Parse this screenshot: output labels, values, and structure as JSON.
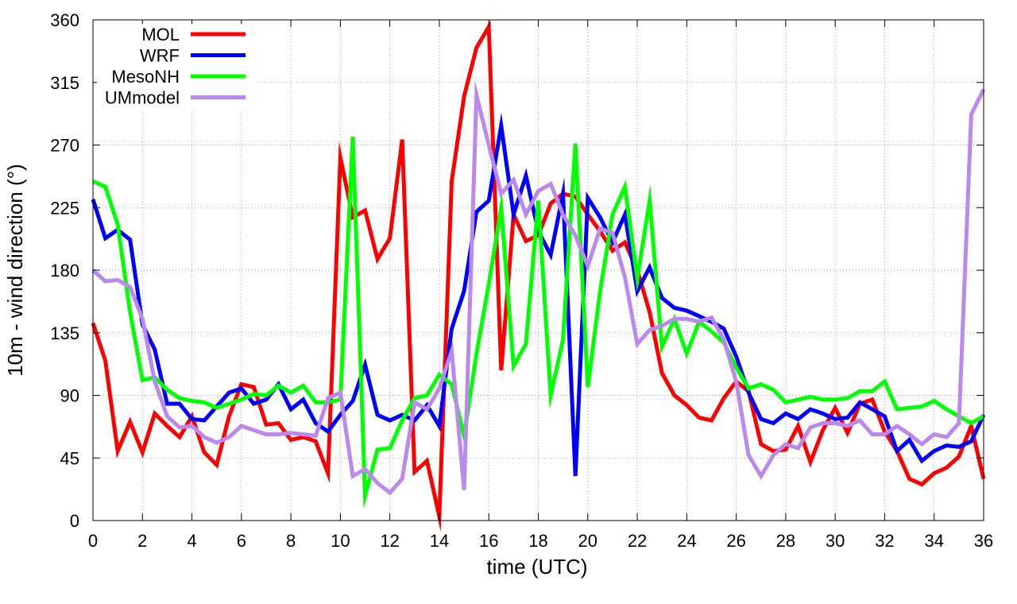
{
  "chart_data": {
    "type": "line",
    "title": "",
    "xlabel": "time (UTC)",
    "ylabel": "10m - wind direction (°)",
    "xlim": [
      0,
      36
    ],
    "ylim": [
      0,
      360
    ],
    "xticks": [
      0,
      2,
      4,
      6,
      8,
      10,
      12,
      14,
      16,
      18,
      20,
      22,
      24,
      26,
      28,
      30,
      32,
      34,
      36
    ],
    "yticks": [
      0,
      45,
      90,
      135,
      180,
      225,
      270,
      315,
      360
    ],
    "grid": true,
    "legend_position": "top-left",
    "series": [
      {
        "name": "MOL",
        "color": "#ff0000",
        "points": [
          [
            0,
            142
          ],
          [
            0.5,
            115
          ],
          [
            1,
            50
          ],
          [
            1.5,
            71
          ],
          [
            2,
            49
          ],
          [
            2.5,
            77
          ],
          [
            3,
            68
          ],
          [
            3.5,
            60
          ],
          [
            4,
            75
          ],
          [
            4.5,
            49
          ],
          [
            5,
            40
          ],
          [
            5.5,
            75
          ],
          [
            6,
            98
          ],
          [
            6.5,
            96
          ],
          [
            7,
            69
          ],
          [
            7.5,
            70
          ],
          [
            8,
            58
          ],
          [
            8.5,
            60
          ],
          [
            9,
            57
          ],
          [
            9.5,
            34
          ],
          [
            10,
            261
          ],
          [
            10.5,
            218
          ],
          [
            11,
            223
          ],
          [
            11.5,
            188
          ],
          [
            12,
            203
          ],
          [
            12.5,
            274
          ],
          [
            13,
            35
          ],
          [
            13.5,
            43
          ],
          [
            14,
            3
          ],
          [
            14.5,
            244
          ],
          [
            15,
            305
          ],
          [
            15.5,
            340
          ],
          [
            16,
            355
          ],
          [
            16.5,
            108
          ],
          [
            17,
            220
          ],
          [
            17.5,
            201
          ],
          [
            18,
            205
          ],
          [
            18.5,
            228
          ],
          [
            19,
            235
          ],
          [
            19.5,
            233
          ],
          [
            20,
            220
          ],
          [
            20.5,
            208
          ],
          [
            21,
            194
          ],
          [
            21.5,
            200
          ],
          [
            22,
            180
          ],
          [
            22.5,
            150
          ],
          [
            23,
            106
          ],
          [
            23.5,
            90
          ],
          [
            24,
            83
          ],
          [
            24.5,
            74
          ],
          [
            25,
            72
          ],
          [
            25.5,
            88
          ],
          [
            26,
            100
          ],
          [
            26.5,
            93
          ],
          [
            27,
            55
          ],
          [
            27.5,
            50
          ],
          [
            28,
            51
          ],
          [
            28.5,
            68
          ],
          [
            29,
            42
          ],
          [
            29.5,
            65
          ],
          [
            30,
            81
          ],
          [
            30.5,
            63
          ],
          [
            31,
            84
          ],
          [
            31.5,
            87
          ],
          [
            32,
            64
          ],
          [
            32.5,
            50
          ],
          [
            33,
            30
          ],
          [
            33.5,
            26
          ],
          [
            34,
            34
          ],
          [
            34.5,
            38
          ],
          [
            35,
            46
          ],
          [
            35.5,
            68
          ],
          [
            36,
            30
          ]
        ]
      },
      {
        "name": "WRF",
        "color": "#0000ff",
        "points": [
          [
            0,
            231
          ],
          [
            0.5,
            203
          ],
          [
            1,
            209
          ],
          [
            1.5,
            202
          ],
          [
            2,
            141
          ],
          [
            2.5,
            123
          ],
          [
            3,
            84
          ],
          [
            3.5,
            84
          ],
          [
            4,
            73
          ],
          [
            4.5,
            72
          ],
          [
            5,
            82
          ],
          [
            5.5,
            92
          ],
          [
            6,
            95
          ],
          [
            6.5,
            84
          ],
          [
            7,
            87
          ],
          [
            7.5,
            98
          ],
          [
            8,
            80
          ],
          [
            8.5,
            87
          ],
          [
            9,
            70
          ],
          [
            9.5,
            64
          ],
          [
            10,
            76
          ],
          [
            10.5,
            86
          ],
          [
            11,
            112
          ],
          [
            11.5,
            76
          ],
          [
            12,
            72
          ],
          [
            12.5,
            76
          ],
          [
            13,
            72
          ],
          [
            13.5,
            83
          ],
          [
            14,
            68
          ],
          [
            14.5,
            138
          ],
          [
            15,
            165
          ],
          [
            15.5,
            222
          ],
          [
            16,
            230
          ],
          [
            16.5,
            284
          ],
          [
            17,
            220
          ],
          [
            17.5,
            248
          ],
          [
            18,
            208
          ],
          [
            18.5,
            191
          ],
          [
            19,
            235
          ],
          [
            19.5,
            32
          ],
          [
            20,
            232
          ],
          [
            20.5,
            218
          ],
          [
            21,
            200
          ],
          [
            21.5,
            220
          ],
          [
            22,
            165
          ],
          [
            22.5,
            182
          ],
          [
            23,
            160
          ],
          [
            23.5,
            153
          ],
          [
            24,
            151
          ],
          [
            24.5,
            147
          ],
          [
            25,
            143
          ],
          [
            25.5,
            138
          ],
          [
            26,
            118
          ],
          [
            26.5,
            92
          ],
          [
            27,
            73
          ],
          [
            27.5,
            70
          ],
          [
            28,
            77
          ],
          [
            28.5,
            73
          ],
          [
            29,
            80
          ],
          [
            29.5,
            77
          ],
          [
            30,
            73
          ],
          [
            30.5,
            74
          ],
          [
            31,
            85
          ],
          [
            31.5,
            80
          ],
          [
            32,
            75
          ],
          [
            32.5,
            50
          ],
          [
            33,
            58
          ],
          [
            33.5,
            43
          ],
          [
            34,
            50
          ],
          [
            34.5,
            54
          ],
          [
            35,
            53
          ],
          [
            35.5,
            57
          ],
          [
            36,
            76
          ]
        ]
      },
      {
        "name": "MesoNH",
        "color": "#00ff00",
        "points": [
          [
            0,
            244
          ],
          [
            0.5,
            240
          ],
          [
            1,
            213
          ],
          [
            1.5,
            150
          ],
          [
            2,
            101
          ],
          [
            2.5,
            103
          ],
          [
            3,
            94
          ],
          [
            3.5,
            88
          ],
          [
            4,
            86
          ],
          [
            4.5,
            85
          ],
          [
            5,
            81
          ],
          [
            5.5,
            84
          ],
          [
            6,
            87
          ],
          [
            6.5,
            91
          ],
          [
            7,
            90
          ],
          [
            7.5,
            97
          ],
          [
            8,
            92
          ],
          [
            8.5,
            97
          ],
          [
            9,
            85
          ],
          [
            9.5,
            85
          ],
          [
            10,
            87
          ],
          [
            10.5,
            276
          ],
          [
            11,
            18
          ],
          [
            11.5,
            51
          ],
          [
            12,
            52
          ],
          [
            12.5,
            72
          ],
          [
            13,
            88
          ],
          [
            13.5,
            90
          ],
          [
            14,
            105
          ],
          [
            14.5,
            98
          ],
          [
            15,
            61
          ],
          [
            15.5,
            120
          ],
          [
            16,
            170
          ],
          [
            16.5,
            225
          ],
          [
            17,
            111
          ],
          [
            17.5,
            127
          ],
          [
            18,
            230
          ],
          [
            18.5,
            90
          ],
          [
            19,
            130
          ],
          [
            19.5,
            271
          ],
          [
            20,
            96
          ],
          [
            20.5,
            165
          ],
          [
            21,
            220
          ],
          [
            21.5,
            240
          ],
          [
            22,
            174
          ],
          [
            22.5,
            230
          ],
          [
            23,
            125
          ],
          [
            23.5,
            145
          ],
          [
            24,
            120
          ],
          [
            24.5,
            143
          ],
          [
            25,
            136
          ],
          [
            25.5,
            128
          ],
          [
            26,
            110
          ],
          [
            26.5,
            95
          ],
          [
            27,
            98
          ],
          [
            27.5,
            94
          ],
          [
            28,
            85
          ],
          [
            28.5,
            87
          ],
          [
            29,
            89
          ],
          [
            29.5,
            87
          ],
          [
            30,
            87
          ],
          [
            30.5,
            88
          ],
          [
            31,
            93
          ],
          [
            31.5,
            93
          ],
          [
            32,
            100
          ],
          [
            32.5,
            80
          ],
          [
            33,
            81
          ],
          [
            33.5,
            82
          ],
          [
            34,
            86
          ],
          [
            34.5,
            80
          ],
          [
            35,
            75
          ],
          [
            35.5,
            70
          ],
          [
            36,
            75
          ]
        ]
      },
      {
        "name": "UMmodel",
        "color": "#bb88ee",
        "points": [
          [
            0,
            180
          ],
          [
            0.5,
            172
          ],
          [
            1,
            173
          ],
          [
            1.5,
            168
          ],
          [
            2,
            145
          ],
          [
            2.5,
            100
          ],
          [
            3,
            75
          ],
          [
            3.5,
            67
          ],
          [
            4,
            68
          ],
          [
            4.5,
            60
          ],
          [
            5,
            56
          ],
          [
            5.5,
            60
          ],
          [
            6,
            68
          ],
          [
            6.5,
            65
          ],
          [
            7,
            62
          ],
          [
            7.5,
            62
          ],
          [
            8,
            63
          ],
          [
            8.5,
            62
          ],
          [
            9,
            61
          ],
          [
            9.5,
            88
          ],
          [
            10,
            92
          ],
          [
            10.5,
            32
          ],
          [
            11,
            37
          ],
          [
            11.5,
            27
          ],
          [
            12,
            20
          ],
          [
            12.5,
            30
          ],
          [
            13,
            85
          ],
          [
            13.5,
            80
          ],
          [
            14,
            95
          ],
          [
            14.5,
            122
          ],
          [
            15,
            22
          ],
          [
            15.5,
            306
          ],
          [
            16,
            270
          ],
          [
            16.5,
            235
          ],
          [
            17,
            245
          ],
          [
            17.5,
            220
          ],
          [
            18,
            237
          ],
          [
            18.5,
            242
          ],
          [
            19,
            220
          ],
          [
            19.5,
            205
          ],
          [
            20,
            183
          ],
          [
            20.5,
            210
          ],
          [
            21,
            207
          ],
          [
            21.5,
            175
          ],
          [
            22,
            127
          ],
          [
            22.5,
            137
          ],
          [
            23,
            140
          ],
          [
            23.5,
            145
          ],
          [
            24,
            145
          ],
          [
            24.5,
            143
          ],
          [
            25,
            146
          ],
          [
            25.5,
            130
          ],
          [
            26,
            100
          ],
          [
            26.5,
            47
          ],
          [
            27,
            32
          ],
          [
            27.5,
            47
          ],
          [
            28,
            55
          ],
          [
            28.5,
            52
          ],
          [
            29,
            67
          ],
          [
            29.5,
            70
          ],
          [
            30,
            70
          ],
          [
            30.5,
            68
          ],
          [
            31,
            72
          ],
          [
            31.5,
            62
          ],
          [
            32,
            62
          ],
          [
            32.5,
            68
          ],
          [
            33,
            62
          ],
          [
            33.5,
            55
          ],
          [
            34,
            62
          ],
          [
            34.5,
            60
          ],
          [
            35,
            70
          ],
          [
            35.5,
            292
          ],
          [
            36,
            310
          ]
        ]
      }
    ]
  }
}
